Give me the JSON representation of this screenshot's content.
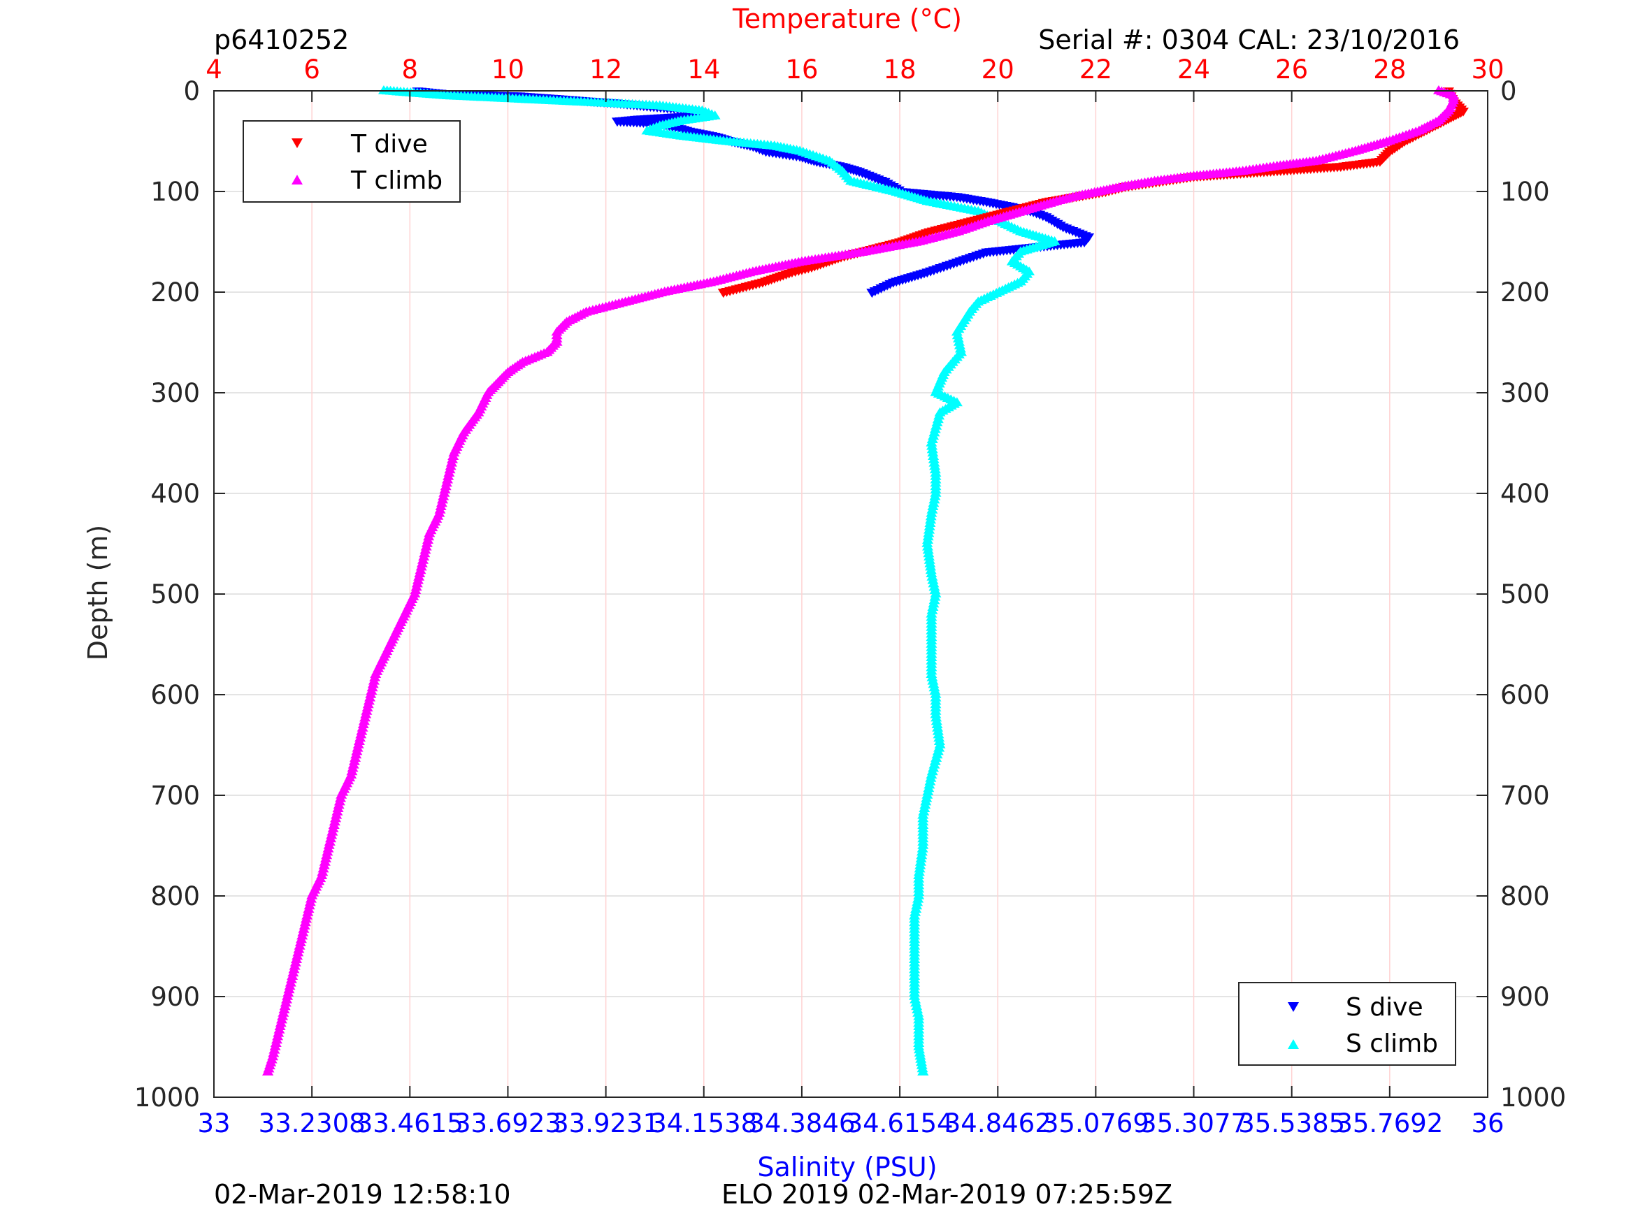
{
  "figure": {
    "top_left_id": "p6410252",
    "top_right_label": "Serial #: 0304  CAL: 23/10/2016",
    "bottom_left_timestamp": "02-Mar-2019 12:58:10",
    "bottom_center_label": "ELO 2019 02-Mar-2019 07:25:59Z"
  },
  "colors": {
    "t_dive": "#ff0000",
    "t_climb": "#ff00ff",
    "s_dive": "#0000ff",
    "s_climb": "#00ffff",
    "temperature_axis": "#ff0000",
    "salinity_axis": "#0000ff"
  },
  "chart_data": {
    "type": "scatter",
    "title": "",
    "ylabel": "Depth (m)",
    "ylim": [
      0,
      1000
    ],
    "y_reversed": true,
    "y_ticks": [
      "0",
      "100",
      "200",
      "300",
      "400",
      "500",
      "600",
      "700",
      "800",
      "900",
      "1000"
    ],
    "grid": true,
    "top_axis": {
      "label": "Temperature (°C)",
      "range": [
        4,
        30
      ],
      "ticks": [
        "4",
        "6",
        "8",
        "10",
        "12",
        "14",
        "16",
        "18",
        "20",
        "22",
        "24",
        "26",
        "28",
        "30"
      ]
    },
    "bottom_axis": {
      "label": "Salinity (PSU)",
      "range": [
        33,
        36
      ],
      "ticks": [
        "33",
        "33.2308",
        "33.4615",
        "33.6923",
        "33.9231",
        "34.1538",
        "34.3846",
        "34.6154",
        "34.8462",
        "35.0769",
        "35.3077",
        "35.5385",
        "35.7692",
        "36"
      ]
    },
    "legends": [
      {
        "position": "top-left",
        "entries": [
          "T dive",
          "T climb"
        ]
      },
      {
        "position": "bottom-right",
        "entries": [
          "S dive",
          "S climb"
        ]
      }
    ],
    "series": [
      {
        "name": "T dive",
        "axis": "temperature",
        "marker": "triangle-down",
        "depth": [
          0,
          10,
          20,
          25,
          30,
          40,
          50,
          60,
          70,
          75,
          80,
          85,
          90,
          95,
          100,
          105,
          110,
          115,
          120,
          125,
          130,
          135,
          140,
          145,
          150,
          155,
          160,
          165,
          170,
          175,
          180,
          185,
          190,
          195,
          200
        ],
        "value": [
          29.2,
          29.3,
          29.5,
          29.3,
          29.1,
          28.7,
          28.3,
          28.0,
          27.8,
          27.0,
          25.5,
          24.0,
          23.3,
          22.6,
          22.2,
          21.6,
          21.0,
          20.6,
          20.2,
          19.8,
          19.4,
          19.0,
          18.6,
          18.3,
          18.0,
          17.6,
          17.2,
          16.8,
          16.5,
          16.2,
          15.8,
          15.5,
          15.2,
          14.8,
          14.4
        ]
      },
      {
        "name": "T climb",
        "axis": "temperature",
        "marker": "triangle-up",
        "depth": [
          0,
          5,
          10,
          20,
          30,
          40,
          50,
          60,
          70,
          75,
          80,
          85,
          90,
          95,
          100,
          105,
          110,
          120,
          130,
          140,
          150,
          160,
          170,
          180,
          190,
          200,
          210,
          220,
          230,
          240,
          250,
          260,
          270,
          280,
          290,
          300,
          320,
          340,
          360,
          380,
          400,
          420,
          440,
          460,
          480,
          500,
          520,
          540,
          560,
          580,
          600,
          620,
          640,
          660,
          680,
          700,
          720,
          740,
          760,
          780,
          800,
          820,
          840,
          860,
          880,
          900,
          920,
          940,
          960,
          975
        ],
        "value": [
          29.0,
          29.3,
          29.3,
          29.2,
          29.0,
          28.6,
          28.0,
          27.3,
          26.5,
          25.7,
          25.0,
          24.0,
          23.2,
          22.6,
          22.1,
          21.6,
          21.2,
          20.5,
          19.8,
          19.2,
          18.4,
          17.3,
          16.0,
          15.0,
          14.2,
          13.2,
          12.4,
          11.6,
          11.2,
          11.0,
          11.0,
          10.8,
          10.3,
          10.0,
          9.8,
          9.6,
          9.4,
          9.1,
          8.9,
          8.8,
          8.7,
          8.6,
          8.4,
          8.3,
          8.2,
          8.1,
          7.9,
          7.7,
          7.5,
          7.3,
          7.2,
          7.1,
          7.0,
          6.9,
          6.8,
          6.6,
          6.5,
          6.4,
          6.3,
          6.2,
          6.0,
          5.9,
          5.8,
          5.7,
          5.6,
          5.5,
          5.4,
          5.3,
          5.2,
          5.1
        ]
      },
      {
        "name": "S dive",
        "axis": "salinity",
        "marker": "triangle-down",
        "depth": [
          0,
          3,
          5,
          8,
          10,
          12,
          15,
          18,
          20,
          22,
          25,
          28,
          30,
          32,
          35,
          40,
          45,
          50,
          55,
          60,
          65,
          70,
          75,
          80,
          85,
          90,
          95,
          100,
          105,
          110,
          115,
          120,
          125,
          130,
          135,
          140,
          145,
          150,
          160,
          170,
          180,
          190,
          200
        ],
        "value": [
          33.48,
          33.55,
          33.72,
          33.82,
          33.88,
          33.95,
          34.02,
          34.1,
          34.14,
          34.15,
          34.12,
          34.0,
          33.95,
          34.05,
          34.08,
          34.12,
          34.18,
          34.22,
          34.27,
          34.3,
          34.38,
          34.42,
          34.48,
          34.52,
          34.55,
          34.58,
          34.6,
          34.62,
          34.75,
          34.82,
          34.88,
          34.93,
          34.96,
          34.98,
          35.0,
          35.03,
          35.06,
          35.05,
          34.82,
          34.75,
          34.68,
          34.6,
          34.55
        ]
      },
      {
        "name": "S climb",
        "axis": "salinity",
        "marker": "triangle-up",
        "depth": [
          0,
          5,
          10,
          15,
          20,
          25,
          30,
          35,
          40,
          45,
          50,
          55,
          60,
          70,
          80,
          90,
          100,
          110,
          120,
          130,
          140,
          150,
          160,
          170,
          180,
          190,
          200,
          210,
          220,
          240,
          260,
          280,
          300,
          310,
          320,
          350,
          380,
          400,
          420,
          450,
          480,
          500,
          520,
          550,
          580,
          600,
          620,
          650,
          680,
          700,
          720,
          750,
          780,
          800,
          820,
          850,
          880,
          900,
          920,
          950,
          975
        ],
        "value": [
          33.4,
          33.55,
          33.8,
          34.05,
          34.15,
          34.18,
          34.1,
          34.05,
          34.02,
          34.1,
          34.2,
          34.32,
          34.38,
          34.45,
          34.48,
          34.5,
          34.6,
          34.68,
          34.8,
          34.85,
          34.9,
          34.98,
          34.9,
          34.88,
          34.92,
          34.9,
          34.85,
          34.8,
          34.78,
          34.75,
          34.76,
          34.72,
          34.7,
          34.75,
          34.71,
          34.69,
          34.7,
          34.7,
          34.69,
          34.68,
          34.69,
          34.7,
          34.69,
          34.69,
          34.69,
          34.7,
          34.7,
          34.71,
          34.69,
          34.68,
          34.67,
          34.67,
          34.66,
          34.66,
          34.65,
          34.65,
          34.65,
          34.65,
          34.66,
          34.66,
          34.67
        ]
      }
    ]
  }
}
